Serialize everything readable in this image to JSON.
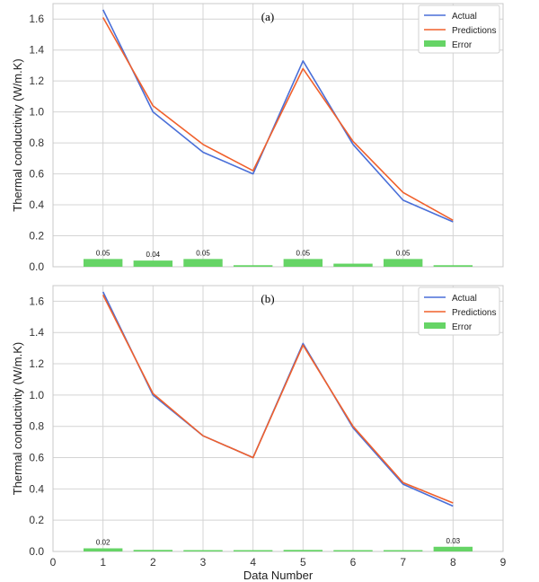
{
  "chart_data": [
    {
      "type": "line",
      "panel_label": "(a)",
      "ylabel": "Thermal conductivity (W/m.K)",
      "xlabel": "",
      "xlim": [
        0,
        9
      ],
      "ylim": [
        0,
        1.7
      ],
      "yticks": [
        0.0,
        0.2,
        0.4,
        0.6,
        0.8,
        1.0,
        1.2,
        1.4,
        1.6
      ],
      "xticks": [],
      "grid": true,
      "legend_position": "top-right",
      "x": [
        1,
        2,
        3,
        4,
        5,
        6,
        7,
        8
      ],
      "series": [
        {
          "name": "Actual",
          "type": "line",
          "color": "#4a6fd8",
          "values": [
            1.66,
            1.0,
            0.74,
            0.6,
            1.33,
            0.79,
            0.43,
            0.29
          ]
        },
        {
          "name": "Predictions",
          "type": "line",
          "color": "#f0602c",
          "values": [
            1.61,
            1.04,
            0.79,
            0.62,
            1.28,
            0.81,
            0.48,
            0.3
          ]
        },
        {
          "name": "Error",
          "type": "bar",
          "color": "#66d466",
          "values": [
            0.05,
            0.04,
            0.05,
            0.01,
            0.05,
            0.02,
            0.05,
            0.01
          ]
        }
      ],
      "bar_labels": [
        "0.05",
        "0.04",
        "0.05",
        "",
        "0.05",
        "",
        "0.05",
        ""
      ]
    },
    {
      "type": "line",
      "panel_label": "(b)",
      "ylabel": "Thermal conductivity (W/m.K)",
      "xlabel": "Data Number",
      "xlim": [
        0,
        9
      ],
      "ylim": [
        0,
        1.7
      ],
      "yticks": [
        0.0,
        0.2,
        0.4,
        0.6,
        0.8,
        1.0,
        1.2,
        1.4,
        1.6
      ],
      "xticks": [
        0,
        1,
        2,
        3,
        4,
        5,
        6,
        7,
        8,
        9
      ],
      "grid": true,
      "legend_position": "top-right",
      "x": [
        1,
        2,
        3,
        4,
        5,
        6,
        7,
        8
      ],
      "series": [
        {
          "name": "Actual",
          "type": "line",
          "color": "#4a6fd8",
          "values": [
            1.66,
            1.0,
            0.74,
            0.6,
            1.33,
            0.79,
            0.43,
            0.29
          ]
        },
        {
          "name": "Predictions",
          "type": "line",
          "color": "#f0602c",
          "values": [
            1.64,
            1.01,
            0.74,
            0.6,
            1.32,
            0.8,
            0.44,
            0.31
          ]
        },
        {
          "name": "Error",
          "type": "bar",
          "color": "#66d466",
          "values": [
            0.02,
            0.01,
            0.0,
            0.0,
            0.01,
            0.005,
            0.005,
            0.03
          ]
        }
      ],
      "bar_labels": [
        "0.02",
        "",
        "",
        "",
        "",
        "",
        "",
        "0.03"
      ]
    }
  ]
}
